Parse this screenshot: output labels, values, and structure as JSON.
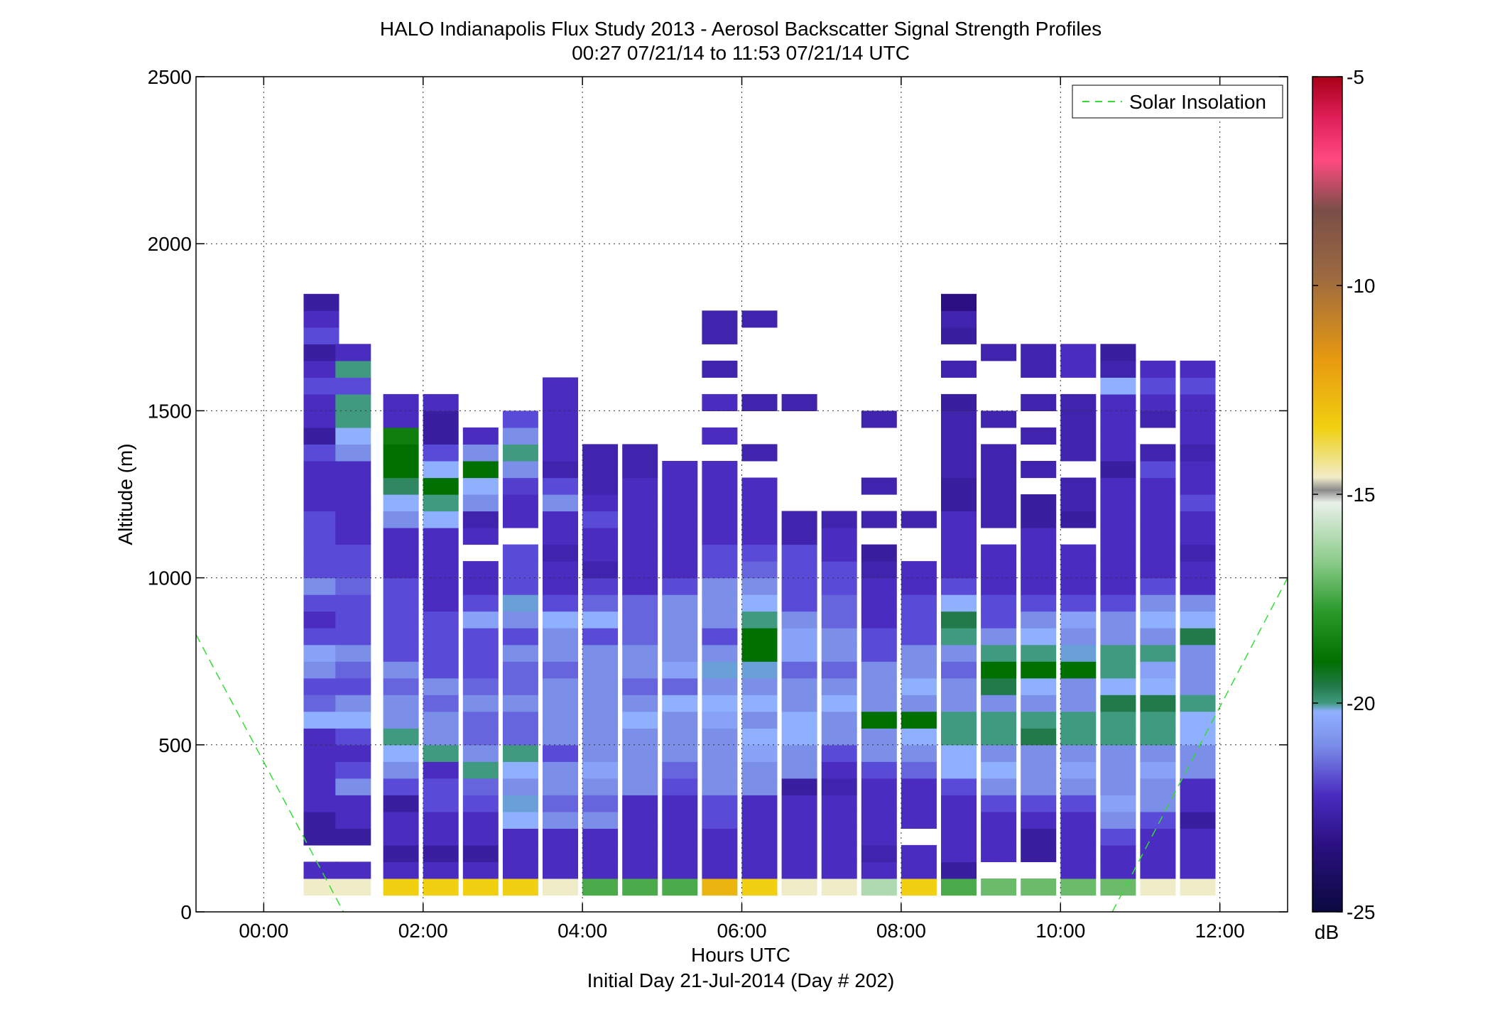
{
  "chart_data": {
    "type": "heatmap",
    "title": "HALO Indianapolis Flux Study 2013 - Aerosol Backscatter Signal Strength Profiles",
    "subtitle": "00:27 07/21/14 to 11:53 07/21/14  UTC",
    "xlabel": "Hours UTC",
    "xlabel2": "Initial Day 21-Jul-2014 (Day # 202)",
    "ylabel": "Altitude (m)",
    "xlim": [
      -0.85,
      12.85
    ],
    "ylim": [
      0,
      2500
    ],
    "x_ticks": [
      {
        "v": 0,
        "t": "00:00"
      },
      {
        "v": 2,
        "t": "02:00"
      },
      {
        "v": 4,
        "t": "04:00"
      },
      {
        "v": 6,
        "t": "06:00"
      },
      {
        "v": 8,
        "t": "08:00"
      },
      {
        "v": 10,
        "t": "10:00"
      },
      {
        "v": 12,
        "t": "12:00"
      }
    ],
    "y_ticks": [
      {
        "v": 0,
        "t": "0"
      },
      {
        "v": 500,
        "t": "500"
      },
      {
        "v": 1000,
        "t": "1000"
      },
      {
        "v": 1500,
        "t": "1500"
      },
      {
        "v": 2000,
        "t": "2000"
      },
      {
        "v": 2500,
        "t": "2500"
      }
    ],
    "grid": true,
    "legend": {
      "position": "top-right",
      "label": "Solar Insolation",
      "color": "#33dd33",
      "style": "dashed"
    },
    "colorbar": {
      "min": -25,
      "max": -5,
      "unit": "dB",
      "ticks": [
        {
          "v": -5,
          "t": "-5"
        },
        {
          "v": -10,
          "t": "-10"
        },
        {
          "v": -15,
          "t": "-15"
        },
        {
          "v": -20,
          "t": "-20"
        },
        {
          "v": -25,
          "t": "-25"
        }
      ]
    },
    "solar_insolation": {
      "descending": [
        [
          -0.85,
          830
        ],
        [
          1.0,
          0
        ]
      ],
      "ascending": [
        [
          10.65,
          0
        ],
        [
          12.85,
          1000
        ]
      ]
    },
    "profile_start_hours": [
      0.5,
      0.9,
      1.5,
      2.0,
      2.5,
      3.0,
      3.5,
      4.0,
      4.5,
      5.0,
      5.5,
      6.0,
      6.5,
      7.0,
      7.5,
      8.0,
      8.5,
      9.0,
      9.5,
      10.0,
      10.5,
      11.0,
      11.5
    ],
    "profile_width_hours": 0.44,
    "bin_height_m": 50,
    "profiles_db": [
      {
        "t": 0.5,
        "base": 50,
        "db": [
          -15,
          -22.5,
          null,
          -23,
          -23,
          -22.5,
          -22.5,
          -22.5,
          -22.5,
          -22.5,
          -21,
          -21.8,
          -22,
          -21.5,
          -21.2,
          -22,
          -22.5,
          -22,
          -21.5,
          -22,
          -22,
          -22,
          -22,
          -22.5,
          -22.5,
          -22.5,
          -22,
          -23,
          -22.5,
          -22.5,
          -22,
          -22.5,
          -23,
          -22,
          -22.5,
          -23
        ]
      },
      {
        "t": 0.9,
        "base": 50,
        "db": [
          -15,
          -22.5,
          null,
          -23,
          -22.5,
          -22.5,
          -21.5,
          -22,
          -22.5,
          -22,
          -21,
          -21.5,
          -22,
          -21.8,
          -21.5,
          -22,
          -22,
          -22,
          -21.8,
          -22,
          -22,
          -22.5,
          -22.5,
          -22.5,
          -22.5,
          -22.5,
          -21.5,
          -21,
          -20.5,
          -20.5,
          -22,
          -20.5,
          -22.5
        ]
      },
      {
        "t": 1.5,
        "base": 50,
        "db": [
          -13.5,
          -22.5,
          -23,
          -22.5,
          -22.5,
          -23,
          -22,
          -21.5,
          -21,
          -20.5,
          -21.5,
          -21.5,
          -21.8,
          -21.5,
          -22,
          -22,
          -22,
          -22,
          -22,
          -22.5,
          -22.5,
          -22.5,
          -21.5,
          -21,
          -20.2,
          -19.5,
          -19.5,
          -19,
          -22.5,
          -22.5
        ]
      },
      {
        "t": 2.0,
        "base": 50,
        "db": [
          -13.5,
          -22.5,
          -23,
          -22.5,
          -22.5,
          -22,
          -22,
          -22.5,
          -20.5,
          -21.5,
          -21.5,
          -21.8,
          -21.5,
          -22,
          -22,
          -22,
          -22,
          -22.5,
          -22.5,
          -22.5,
          -22.5,
          -22.5,
          -21,
          -20.5,
          -19.5,
          -21,
          -22,
          -23,
          -23,
          -22.5
        ]
      },
      {
        "t": 2.5,
        "base": 50,
        "db": [
          -13.5,
          -22.5,
          -23,
          -22.5,
          -22.5,
          -22,
          -21.8,
          -20.5,
          -21.5,
          -21.8,
          -21.8,
          -21.5,
          -21.8,
          -22,
          -22,
          -22,
          -21.2,
          -22,
          -22.5,
          -22.5,
          null,
          -22.5,
          -22.8,
          -21.5,
          -21,
          -19.5,
          -21.5,
          -22.5
        ]
      },
      {
        "t": 3.0,
        "base": 50,
        "db": [
          -13.5,
          -22.5,
          -22.5,
          -22.5,
          -21,
          -20.8,
          -21.5,
          -21,
          -20.5,
          -21.8,
          -21.8,
          -21.5,
          -21.8,
          -21.8,
          -21.5,
          -22,
          -21.5,
          -20.8,
          -22,
          -22,
          -22,
          null,
          -22.5,
          -22.5,
          -22.2,
          -21.5,
          -20.5,
          -21.5,
          -22
        ]
      },
      {
        "t": 3.5,
        "base": 50,
        "db": [
          -15,
          -22.5,
          -22.5,
          -22.5,
          -21.5,
          -21.8,
          -21.5,
          -21.5,
          -22,
          -21.5,
          -21.5,
          -21.5,
          -21.5,
          -21.8,
          -21.5,
          -21.5,
          -21,
          -22,
          -22.5,
          -22.5,
          -22.8,
          -22.5,
          -22.5,
          -21.5,
          -22,
          -22.8,
          -22.5,
          -22.5,
          -22.5,
          -22.5,
          -22.5
        ]
      },
      {
        "t": 4.0,
        "base": 50,
        "db": [
          -17.5,
          -22.5,
          -22.5,
          -22.5,
          -21.5,
          -21.8,
          -21.5,
          -21.2,
          -21.5,
          -21.5,
          -21.5,
          -21.5,
          -21.5,
          -21.5,
          -21.5,
          -22,
          -21,
          -21.8,
          -22.2,
          -22.8,
          -22.5,
          -22.5,
          -22,
          -22.5,
          -22.8,
          -22.8,
          -22.8
        ]
      },
      {
        "t": 4.5,
        "base": 50,
        "db": [
          -17.5,
          -22.5,
          -22.5,
          -22.5,
          -22.5,
          -22.5,
          -21.5,
          -21.5,
          -21.5,
          -21.5,
          -21,
          -21.5,
          -21.8,
          -21.5,
          -21.5,
          -21.8,
          -21.8,
          -21.8,
          -22.5,
          -22.5,
          -22.5,
          -22.5,
          -22.5,
          -22.5,
          -22.5,
          -22.8,
          -22.8
        ]
      },
      {
        "t": 5.0,
        "base": 50,
        "db": [
          -17.5,
          -22.5,
          -22.5,
          -22.5,
          -22.5,
          -22.5,
          -22,
          -21.8,
          -21.5,
          -21.5,
          -21.5,
          -21,
          -21.8,
          -21.2,
          -21.5,
          -21.5,
          -21.5,
          -21.5,
          -22,
          -22.5,
          -22.5,
          -22.5,
          -22.5,
          -22.5,
          -22.5,
          -22.5,
          null,
          null,
          null,
          null,
          null,
          null,
          null,
          null,
          null,
          null
        ]
      },
      {
        "t": 5.5,
        "base": 50,
        "db": [
          -12.5,
          -22.5,
          -22.5,
          -22.5,
          -22,
          -22,
          -21.5,
          -21.5,
          -21.5,
          -21.5,
          -21.2,
          -21,
          -21.5,
          -20.8,
          -21.5,
          -22,
          -21.5,
          -21.5,
          -21.5,
          -22,
          -22,
          -22.5,
          -22.5,
          -22.5,
          -22.5,
          -22.5,
          null,
          -22.5,
          null,
          -22.5,
          null,
          -22.8,
          null,
          -22.8,
          -22.8
        ]
      },
      {
        "t": 6.0,
        "base": 50,
        "db": [
          -13.5,
          -22.5,
          -22.5,
          -22.5,
          -22.5,
          -22.5,
          -21.5,
          -21.5,
          -21.2,
          -21,
          -21.5,
          -21,
          -21.5,
          -20.8,
          -19.5,
          -19.5,
          -20.5,
          -21,
          -21.5,
          -21.8,
          -22,
          -22.5,
          -22.5,
          -22.5,
          -22.5,
          null,
          -22.8,
          null,
          null,
          -22.8,
          null,
          null,
          null,
          null,
          -22.8
        ]
      },
      {
        "t": 6.5,
        "base": 50,
        "db": [
          -15,
          -22.5,
          -22.5,
          -22.5,
          -22.5,
          -22.5,
          -23,
          -21.5,
          -21.5,
          -21,
          -21,
          -21.5,
          -21.5,
          -21.8,
          -21.2,
          -21.2,
          -21.5,
          -22,
          -22,
          -22,
          -22,
          -22.8,
          -22.8,
          null,
          null,
          null,
          null,
          null,
          null,
          -22.8
        ]
      },
      {
        "t": 7.0,
        "base": 50,
        "db": [
          -15,
          -22.5,
          -22.5,
          -22.5,
          -22.5,
          -22.5,
          -22.8,
          -22.5,
          -22,
          -21.5,
          -21.5,
          -21,
          -21.5,
          -21.8,
          -21.5,
          -21.5,
          -21.8,
          -21.8,
          -22,
          -22,
          -22.5,
          -22.5,
          -22.8
        ]
      },
      {
        "t": 7.5,
        "base": 50,
        "db": [
          -16,
          -22.5,
          -22.8,
          -22.5,
          -22.5,
          -22.5,
          -22.5,
          -22,
          -21.5,
          -21.5,
          -19.5,
          -21.5,
          -21.5,
          -21.5,
          -22,
          -22,
          -22.5,
          -22.5,
          -22.5,
          -22.8,
          -23,
          null,
          -22.8,
          null,
          -22.8,
          null,
          null,
          null,
          -22.8
        ]
      },
      {
        "t": 8.0,
        "base": 50,
        "db": [
          -13.5,
          -22.5,
          -22.5,
          null,
          -22.5,
          -22.5,
          -22.5,
          -21.8,
          -21.5,
          -21,
          -19.5,
          -21.5,
          -21,
          -21.5,
          -21.5,
          -22,
          -22,
          -22,
          -22.5,
          -22.5,
          null,
          null,
          -22.8
        ]
      },
      {
        "t": 8.5,
        "base": 50,
        "db": [
          -17.5,
          -23,
          -22.5,
          -22.5,
          -22.5,
          -22.5,
          -22,
          -21,
          -21,
          -20.5,
          -20.5,
          -21.5,
          -21.5,
          -21.8,
          -21.5,
          -20.5,
          -20,
          -21,
          -22,
          -22.5,
          -22.5,
          -22.5,
          -22.5,
          -23,
          -23,
          -22.8,
          -22.8,
          -22.8,
          -22.8,
          -23,
          null,
          -22.8,
          null,
          -23,
          -22.8,
          -23.5
        ]
      },
      {
        "t": 9.0,
        "base": 50,
        "db": [
          -17,
          null,
          -22.5,
          -22.5,
          -22.5,
          -22,
          -21.5,
          -21,
          -21.5,
          -20.5,
          -20.5,
          -21.5,
          -20,
          -19.5,
          -20.5,
          -21.5,
          -22,
          -22,
          -22.5,
          -22.5,
          -22.5,
          null,
          -22.8,
          -22.8,
          -22.8,
          -22.8,
          -22.8,
          null,
          -22.8,
          null,
          null,
          null,
          -22.8
        ]
      },
      {
        "t": 9.5,
        "base": 50,
        "db": [
          -17,
          null,
          -23,
          -23,
          -22.5,
          -22,
          -21.5,
          -21.5,
          -21.5,
          -20,
          -20.5,
          -21.5,
          -21,
          -19.5,
          -20.5,
          -21,
          -21.5,
          -22,
          -22.5,
          -22.5,
          -22.5,
          -22.5,
          -23,
          -23,
          null,
          -22.8,
          null,
          -22.8,
          null,
          -22.8,
          null,
          -22.8,
          -22.8
        ]
      },
      {
        "t": 10.0,
        "base": 50,
        "db": [
          -17,
          -22.5,
          -22.5,
          -22.5,
          -22.5,
          -22,
          -21.5,
          -21.2,
          -21.5,
          -20.5,
          -20.5,
          -21.5,
          -21.5,
          -19.5,
          -20.8,
          -21.5,
          -21.2,
          -22,
          -22.5,
          -22.5,
          -22.5,
          null,
          -23,
          -22.8,
          -22.8,
          null,
          -22.8,
          -22.8,
          -22.8,
          -22.8,
          null,
          -22.5,
          -22.5
        ]
      },
      {
        "t": 10.5,
        "base": 50,
        "db": [
          -17,
          -22.5,
          -22.5,
          -22,
          -21.5,
          -21.2,
          -21.5,
          -21.5,
          -21.5,
          -20.5,
          -20.5,
          -20,
          -21,
          -20.5,
          -20.5,
          -21.5,
          -21.5,
          -22,
          -22.5,
          -22.5,
          -22.5,
          -22.5,
          -22.5,
          -22.5,
          -22.5,
          -23,
          -22.5,
          -22.5,
          -22.5,
          -22.5,
          -21,
          -22.8,
          -23
        ]
      },
      {
        "t": 11.0,
        "base": 50,
        "db": [
          -15,
          -22.5,
          -22.5,
          -22.5,
          -22,
          -21.5,
          -21.5,
          -21.2,
          -21.5,
          -20.5,
          -20.5,
          -20,
          -21,
          -21.2,
          -20.5,
          -21.5,
          -21,
          -21.5,
          -22,
          -22.5,
          -22.5,
          -22.5,
          -22.5,
          -22.5,
          -22.5,
          -22,
          -22.8,
          null,
          -22.8,
          -22.5,
          -22,
          -22.5
        ]
      },
      {
        "t": 11.5,
        "base": 50,
        "db": [
          -15,
          -22.5,
          -22.5,
          -22.5,
          -23,
          -22.5,
          -22.5,
          -21.5,
          -21.5,
          -21,
          -21,
          -20.5,
          -21.5,
          -21.5,
          -21.5,
          -20,
          -21,
          -21.5,
          -22.5,
          -22.5,
          -22.8,
          -22.5,
          -22.5,
          -22,
          -22.5,
          -22.5,
          -22.8,
          -22.5,
          -22.5,
          -22.5,
          -22,
          -22.5
        ]
      }
    ]
  }
}
